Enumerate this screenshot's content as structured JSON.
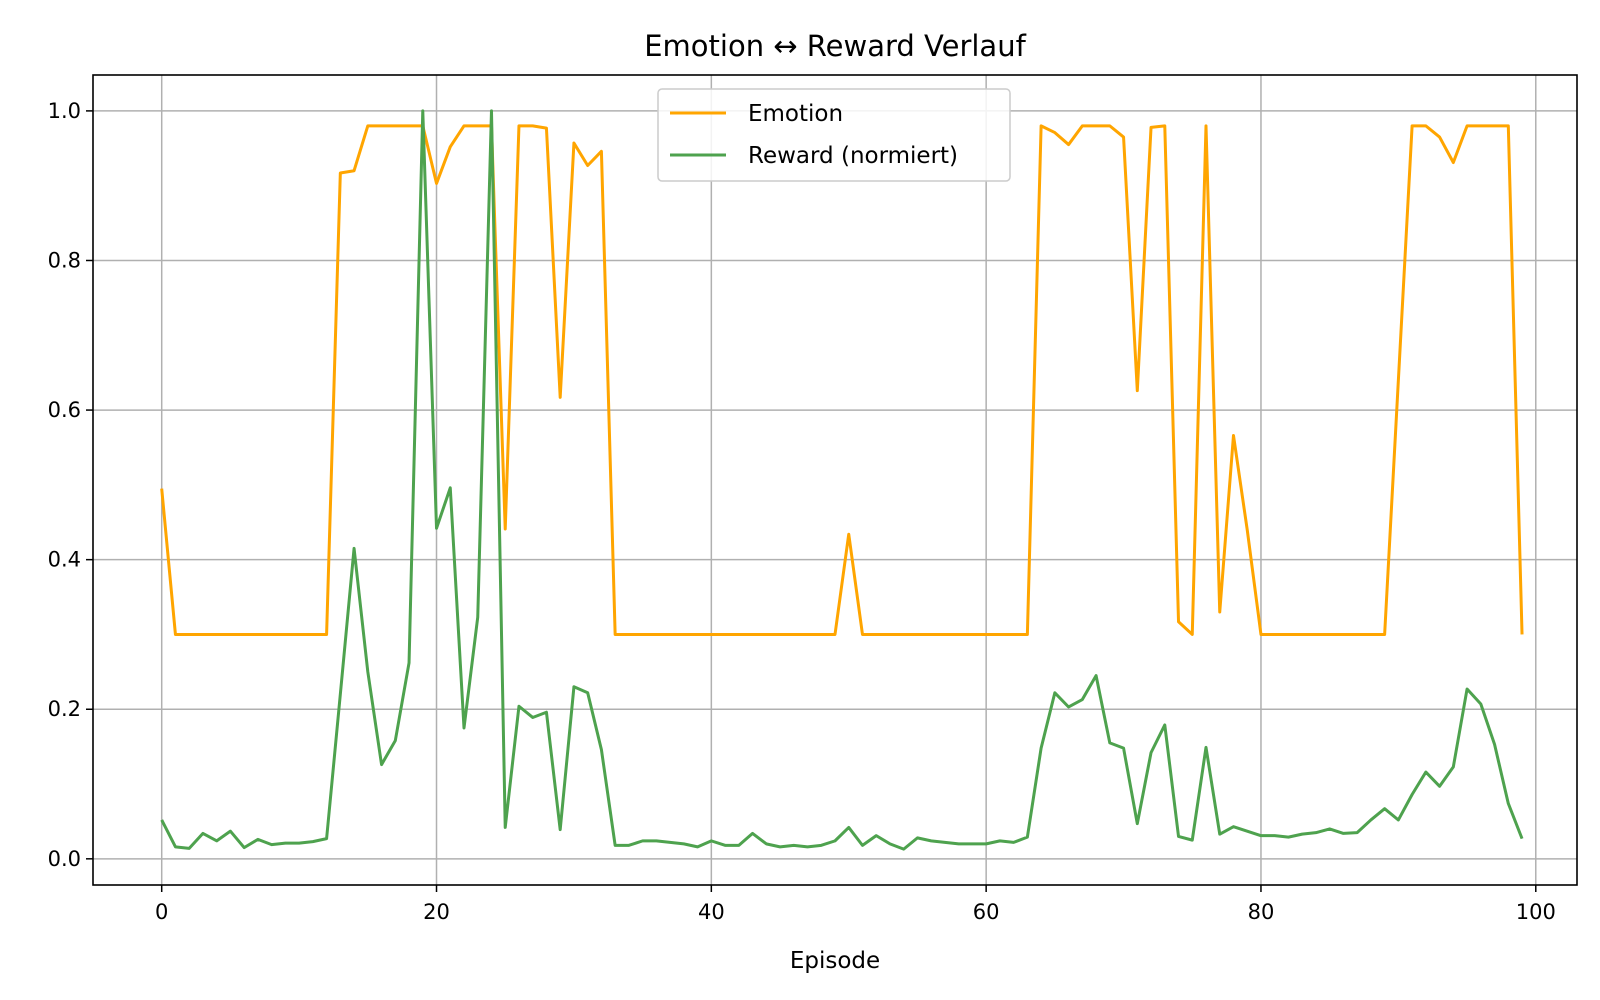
{
  "chart_data": {
    "type": "line",
    "title": "Emotion ↔ Reward Verlauf",
    "xlabel": "Episode",
    "ylabel": "",
    "xlim": [
      -5,
      103
    ],
    "ylim": [
      -0.035,
      1.048
    ],
    "xticks": [
      0,
      20,
      40,
      60,
      80,
      100
    ],
    "yticks": [
      0.0,
      0.2,
      0.4,
      0.6,
      0.8,
      1.0
    ],
    "xtick_labels": [
      "0",
      "20",
      "40",
      "60",
      "80",
      "100"
    ],
    "ytick_labels": [
      "0.0",
      "0.2",
      "0.4",
      "0.6",
      "0.8",
      "1.0"
    ],
    "grid": true,
    "legend_position": "top-center",
    "x": [
      0,
      1,
      2,
      3,
      4,
      5,
      6,
      7,
      8,
      9,
      10,
      11,
      12,
      13,
      14,
      15,
      16,
      17,
      18,
      19,
      20,
      21,
      22,
      23,
      24,
      25,
      26,
      27,
      28,
      29,
      30,
      31,
      32,
      33,
      34,
      35,
      36,
      37,
      38,
      39,
      40,
      41,
      42,
      43,
      44,
      45,
      46,
      47,
      48,
      49,
      50,
      51,
      52,
      53,
      54,
      55,
      56,
      57,
      58,
      59,
      60,
      61,
      62,
      63,
      64,
      65,
      66,
      67,
      68,
      69,
      70,
      71,
      72,
      73,
      74,
      75,
      76,
      77,
      78,
      79,
      80,
      81,
      82,
      83,
      84,
      85,
      86,
      87,
      88,
      89,
      90,
      91,
      92,
      93,
      94,
      95,
      96,
      97,
      98,
      99
    ],
    "series": [
      {
        "name": "Emotion",
        "color": "#ffa500",
        "values": [
          0.495,
          0.3,
          0.3,
          0.3,
          0.3,
          0.3,
          0.3,
          0.3,
          0.3,
          0.3,
          0.3,
          0.3,
          0.3,
          0.917,
          0.92,
          0.98,
          0.98,
          0.98,
          0.98,
          0.98,
          0.903,
          0.952,
          0.98,
          0.98,
          0.98,
          0.441,
          0.98,
          0.98,
          0.977,
          0.617,
          0.957,
          0.927,
          0.946,
          0.3,
          0.3,
          0.3,
          0.3,
          0.3,
          0.3,
          0.3,
          0.3,
          0.3,
          0.3,
          0.3,
          0.3,
          0.3,
          0.3,
          0.3,
          0.3,
          0.3,
          0.434,
          0.3,
          0.3,
          0.3,
          0.3,
          0.3,
          0.3,
          0.3,
          0.3,
          0.3,
          0.3,
          0.3,
          0.3,
          0.3,
          0.98,
          0.971,
          0.955,
          0.98,
          0.98,
          0.98,
          0.965,
          0.626,
          0.978,
          0.98,
          0.317,
          0.3,
          0.98,
          0.33,
          0.566,
          0.44,
          0.3,
          0.3,
          0.3,
          0.3,
          0.3,
          0.3,
          0.3,
          0.3,
          0.3,
          0.3,
          0.64,
          0.98,
          0.98,
          0.965,
          0.931,
          0.98,
          0.98,
          0.98,
          0.98,
          0.3
        ]
      },
      {
        "name": "Reward (normiert)",
        "color": "#4ea24e",
        "values": [
          0.052,
          0.016,
          0.014,
          0.034,
          0.024,
          0.037,
          0.015,
          0.026,
          0.019,
          0.021,
          0.021,
          0.023,
          0.027,
          0.22,
          0.415,
          0.25,
          0.126,
          0.158,
          0.262,
          1.0,
          0.442,
          0.496,
          0.175,
          0.323,
          1.0,
          0.042,
          0.204,
          0.189,
          0.196,
          0.039,
          0.23,
          0.222,
          0.146,
          0.018,
          0.018,
          0.024,
          0.024,
          0.022,
          0.02,
          0.016,
          0.024,
          0.018,
          0.018,
          0.034,
          0.02,
          0.016,
          0.018,
          0.016,
          0.018,
          0.024,
          0.042,
          0.018,
          0.031,
          0.02,
          0.013,
          0.028,
          0.024,
          0.022,
          0.02,
          0.02,
          0.02,
          0.024,
          0.022,
          0.029,
          0.148,
          0.222,
          0.203,
          0.213,
          0.245,
          0.155,
          0.148,
          0.047,
          0.142,
          0.179,
          0.03,
          0.025,
          0.149,
          0.033,
          0.043,
          0.037,
          0.031,
          0.031,
          0.029,
          0.033,
          0.035,
          0.04,
          0.034,
          0.035,
          0.052,
          0.067,
          0.052,
          0.086,
          0.116,
          0.097,
          0.123,
          0.227,
          0.207,
          0.153,
          0.074,
          0.027
        ]
      }
    ]
  }
}
